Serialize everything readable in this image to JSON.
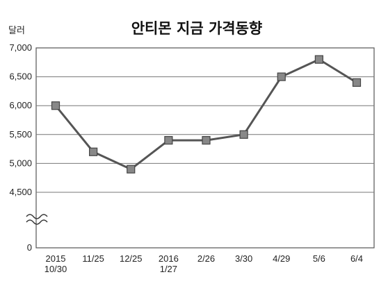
{
  "chart_data": {
    "type": "line",
    "title": "안티몬 지금 가격동향",
    "ylabel": "달러",
    "xlabel": "",
    "categories": [
      [
        "2015",
        "10/30"
      ],
      [
        "11/25"
      ],
      [
        "12/25"
      ],
      [
        "2016",
        "1/27"
      ],
      [
        "2/26"
      ],
      [
        "3/30"
      ],
      [
        "4/29"
      ],
      [
        "5/6"
      ],
      [
        "6/4"
      ]
    ],
    "values": [
      6000,
      5200,
      4900,
      5400,
      5400,
      5500,
      6500,
      6800,
      6400
    ],
    "yticks": [
      "7,000",
      "6,500",
      "6,000",
      "5,500",
      "5,000",
      "4,500",
      "0"
    ],
    "ylim": [
      4500,
      7000
    ],
    "axis_break": true,
    "grid": true,
    "colors": {
      "line": "#555555",
      "marker": "#888888"
    }
  }
}
